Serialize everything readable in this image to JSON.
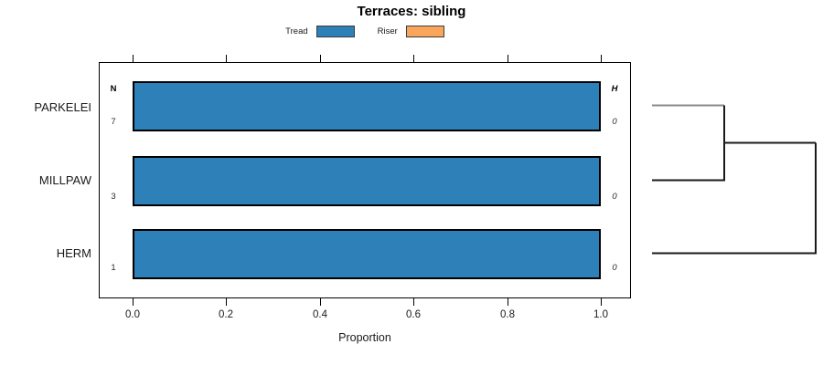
{
  "chart_data": {
    "type": "bar",
    "orientation": "horizontal",
    "title": "Terraces: sibling",
    "xlabel": "Proportion",
    "xlim": [
      0,
      1
    ],
    "xticks": [
      "0.0",
      "0.2",
      "0.4",
      "0.6",
      "0.8",
      "1.0"
    ],
    "grid": false,
    "categories": [
      "PARKELEI",
      "MILLPAW",
      "HERM"
    ],
    "series": [
      {
        "name": "Tread",
        "color": "#2E80B9",
        "values": [
          1.0,
          1.0,
          1.0
        ]
      },
      {
        "name": "Riser",
        "color": "#F9A65C",
        "values": [
          0.0,
          0.0,
          0.0
        ]
      }
    ],
    "left_column": {
      "header": "N",
      "values": [
        "7",
        "3",
        "1"
      ]
    },
    "right_column": {
      "header": "H",
      "values": [
        "0",
        "0",
        "0"
      ]
    },
    "legend": {
      "position": "top-center",
      "entries": [
        "Tread",
        "Riser"
      ]
    },
    "dendrogram": {
      "position": "right",
      "leaf_order": [
        "PARKELEI",
        "MILLPAW",
        "HERM"
      ],
      "first_merge": [
        "PARKELEI",
        "MILLPAW"
      ],
      "second_merge": [
        "PARKELEI+MILLPAW",
        "HERM"
      ],
      "leaf_line_colors": [
        "#8a8a8a",
        "#1a1a1a",
        "#1a1a1a"
      ]
    }
  },
  "colors": {
    "tread_blue": "#2E80B9",
    "riser_orange": "#F9A65C",
    "bar_border": "#000000",
    "axis_black": "#000000",
    "dendro_gray": "#8a8a8a"
  }
}
